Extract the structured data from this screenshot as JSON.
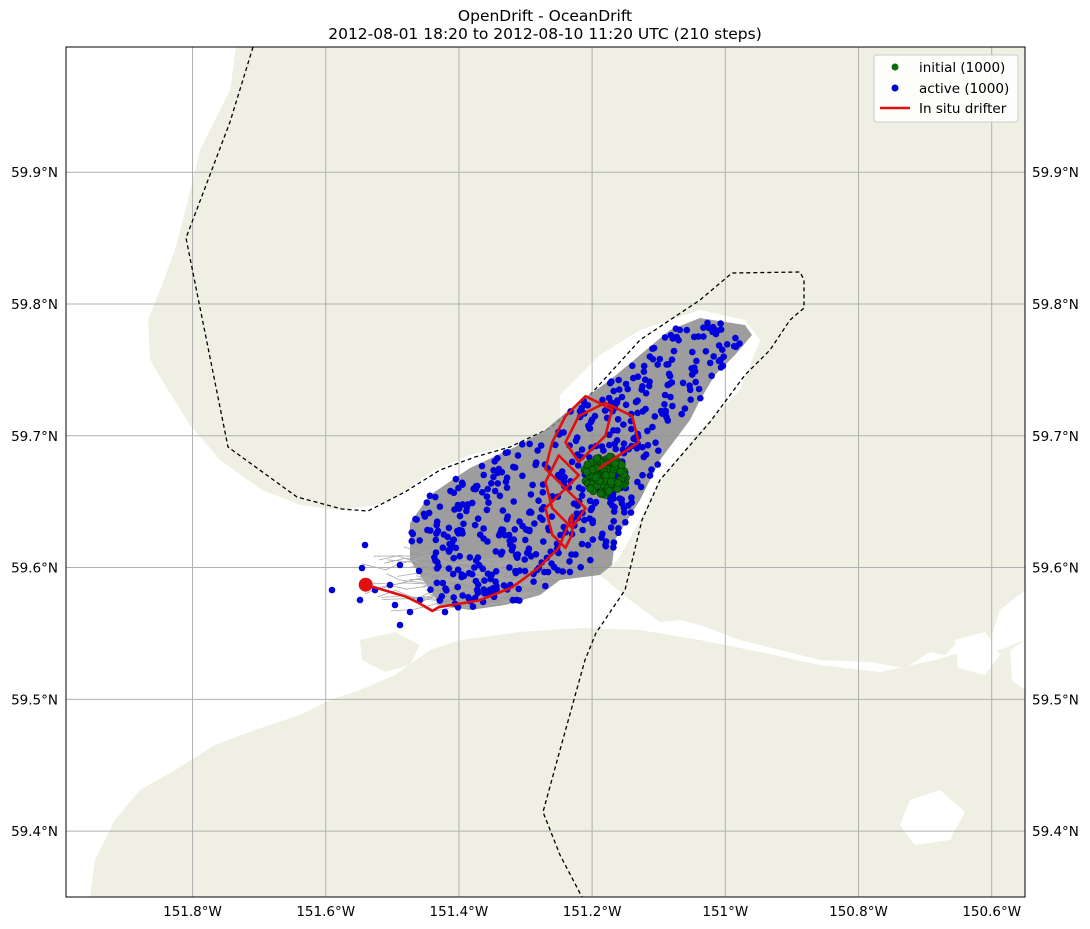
{
  "title": {
    "line1": "OpenDrift - OceanDrift",
    "line2": "2012-08-01 18:20 to 2012-08-10 11:20 UTC (210 steps)"
  },
  "map": {
    "lon_range": [
      -151.99,
      -150.55
    ],
    "lat_range": [
      59.35,
      59.995
    ],
    "grid": true,
    "colors": {
      "land": "#efefe3",
      "ocean": "#ffffff",
      "grid": "#b0b0b0",
      "trajectories": "#8c8c8c",
      "initial": "#0a6e0a",
      "active": "#0000dd",
      "drifter": "#e01010",
      "boundary": "#000000"
    },
    "x_ticks": [
      {
        "lon": -151.8,
        "label": "151.8°W"
      },
      {
        "lon": -151.6,
        "label": "151.6°W"
      },
      {
        "lon": -151.4,
        "label": "151.4°W"
      },
      {
        "lon": -151.2,
        "label": "151.2°W"
      },
      {
        "lon": -151.0,
        "label": "151°W"
      },
      {
        "lon": -150.8,
        "label": "150.8°W"
      },
      {
        "lon": -150.6,
        "label": "150.6°W"
      }
    ],
    "y_ticks": [
      {
        "lat": 59.4,
        "label": "59.4°N"
      },
      {
        "lat": 59.5,
        "label": "59.5°N"
      },
      {
        "lat": 59.6,
        "label": "59.6°N"
      },
      {
        "lat": 59.7,
        "label": "59.7°N"
      },
      {
        "lat": 59.8,
        "label": "59.8°N"
      },
      {
        "lat": 59.9,
        "label": "59.9°N"
      }
    ]
  },
  "legend": {
    "placement": "top-right",
    "items": [
      {
        "label": "initial (1000)",
        "marker": "dot",
        "color": "#0a6e0a"
      },
      {
        "label": "active (1000)",
        "marker": "dot",
        "color": "#0000dd"
      },
      {
        "label": "In situ drifter",
        "marker": "line",
        "color": "#e01010"
      }
    ]
  },
  "chart_data": {
    "type": "scatter",
    "title": "OpenDrift - OceanDrift",
    "subtitle": "2012-08-01 18:20 to 2012-08-10 11:20 UTC (210 steps)",
    "xlim": [
      -151.99,
      -150.55
    ],
    "ylim": [
      59.35,
      59.995
    ],
    "x_ticks": [
      -151.8,
      -151.6,
      -151.4,
      -151.2,
      -151.0,
      -150.8,
      -150.6
    ],
    "y_ticks": [
      59.4,
      59.5,
      59.6,
      59.7,
      59.8,
      59.9
    ],
    "series": [
      {
        "name": "initial (1000)",
        "count": 1000,
        "center": [
          -151.18,
          59.67
        ],
        "radius_deg": 0.03
      },
      {
        "name": "active (1000)",
        "count": 1000,
        "extent_lon": [
          -151.6,
          -150.99
        ],
        "extent_lat": [
          59.56,
          59.79
        ]
      },
      {
        "name": "In situ drifter",
        "lon": [
          -151.19,
          -151.16,
          -151.13,
          -151.14,
          -151.18,
          -151.22,
          -151.24,
          -151.22,
          -151.18,
          -151.17,
          -151.21,
          -151.24,
          -151.26,
          -151.27,
          -151.24,
          -151.22,
          -151.25,
          -151.27,
          -151.26,
          -151.23,
          -151.21,
          -151.24,
          -151.27,
          -151.26,
          -151.24,
          -151.23,
          -151.23,
          -151.25,
          -151.28,
          -151.32,
          -151.37,
          -151.43,
          -151.44,
          -151.46,
          -151.48,
          -151.54
        ],
        "lat": [
          59.675,
          59.685,
          59.695,
          59.715,
          59.725,
          59.715,
          59.695,
          59.68,
          59.7,
          59.72,
          59.73,
          59.715,
          59.695,
          59.675,
          59.66,
          59.67,
          59.685,
          59.665,
          59.645,
          59.63,
          59.645,
          59.66,
          59.645,
          59.625,
          59.615,
          59.625,
          59.64,
          59.615,
          59.6,
          59.585,
          59.575,
          59.57,
          59.567,
          59.573,
          59.578,
          59.587
        ]
      }
    ],
    "drifter_end": {
      "lon": -151.54,
      "lat": 59.587
    }
  }
}
